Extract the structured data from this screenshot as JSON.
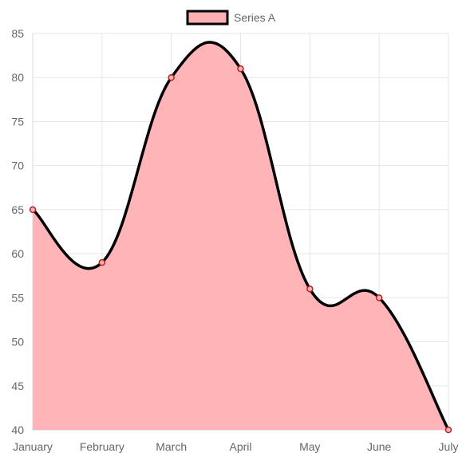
{
  "chart_data": {
    "type": "area",
    "title": "",
    "xlabel": "",
    "ylabel": "",
    "categories": [
      "January",
      "February",
      "March",
      "April",
      "May",
      "June",
      "July"
    ],
    "series": [
      {
        "name": "Series A",
        "values": [
          65,
          59,
          80,
          81,
          56,
          55,
          40
        ],
        "fill_color": "#ffb1b3",
        "line_color": "#000000",
        "point_fill": "#ffb1b3",
        "point_border": "#b22222"
      }
    ],
    "ylim": [
      40,
      85
    ],
    "y_ticks": [
      40,
      45,
      50,
      55,
      60,
      65,
      70,
      75,
      80,
      85
    ],
    "grid": true,
    "legend": "top-center",
    "curve": "smooth"
  }
}
